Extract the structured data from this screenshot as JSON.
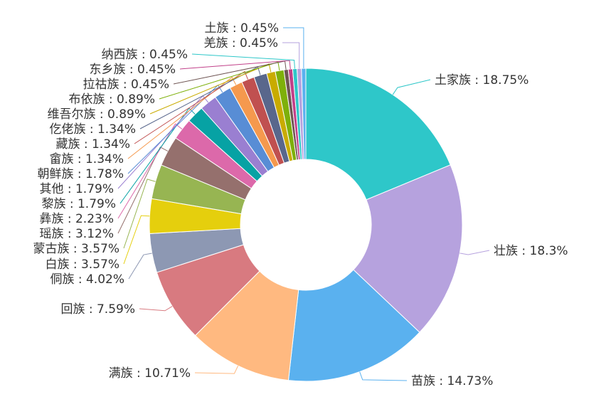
{
  "chart_data": {
    "type": "pie",
    "style": "donut",
    "title": "",
    "slices": [
      {
        "label": "土家族 : 18.75%",
        "value": 18.75,
        "color": "#2ec7c9"
      },
      {
        "label": "壮族 : 18.3%",
        "value": 18.3,
        "color": "#b6a2de"
      },
      {
        "label": "苗族 : 14.73%",
        "value": 14.73,
        "color": "#5ab1ef"
      },
      {
        "label": "满族 : 10.71%",
        "value": 10.71,
        "color": "#ffb980"
      },
      {
        "label": "回族 : 7.59%",
        "value": 7.59,
        "color": "#d87a80"
      },
      {
        "label": "侗族 : 4.02%",
        "value": 4.02,
        "color": "#8d98b3"
      },
      {
        "label": "白族 : 3.57%",
        "value": 3.57,
        "color": "#e5cf0d"
      },
      {
        "label": "蒙古族 : 3.57%",
        "value": 3.57,
        "color": "#97b552"
      },
      {
        "label": "瑶族 : 3.12%",
        "value": 3.12,
        "color": "#95706d"
      },
      {
        "label": "彝族 : 2.23%",
        "value": 2.23,
        "color": "#dc69aa"
      },
      {
        "label": "黎族 : 1.79%",
        "value": 1.79,
        "color": "#07a2a4"
      },
      {
        "label": "其他 : 1.79%",
        "value": 1.79,
        "color": "#9a7fd1"
      },
      {
        "label": "朝鲜族 : 1.78%",
        "value": 1.78,
        "color": "#588dd5"
      },
      {
        "label": "畲族 : 1.34%",
        "value": 1.34,
        "color": "#f5994e"
      },
      {
        "label": "藏族 : 1.34%",
        "value": 1.34,
        "color": "#c05050"
      },
      {
        "label": "仡佬族 : 1.34%",
        "value": 1.34,
        "color": "#59678c"
      },
      {
        "label": "维吾尔族 : 0.89%",
        "value": 0.89,
        "color": "#c9ab00"
      },
      {
        "label": "布依族 : 0.89%",
        "value": 0.89,
        "color": "#7eb00a"
      },
      {
        "label": "拉祜族 : 0.45%",
        "value": 0.45,
        "color": "#6f5553"
      },
      {
        "label": "东乡族 : 0.45%",
        "value": 0.45,
        "color": "#c14089"
      },
      {
        "label": "纳西族 : 0.45%",
        "value": 0.45,
        "color": "#2ec7c9"
      },
      {
        "label": "羌族 : 0.45%",
        "value": 0.45,
        "color": "#b6a2de"
      },
      {
        "label": "土族 : 0.45%",
        "value": 0.45,
        "color": "#5ab1ef"
      }
    ]
  }
}
